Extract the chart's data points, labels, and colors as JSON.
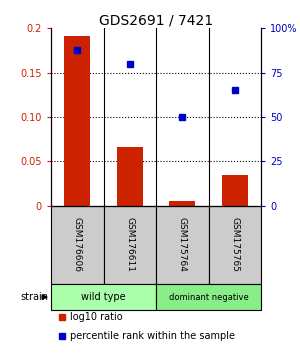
{
  "title": "GDS2691 / 7421",
  "samples": [
    "GSM176606",
    "GSM176611",
    "GSM175764",
    "GSM175765"
  ],
  "bar_values": [
    0.191,
    0.066,
    0.005,
    0.035
  ],
  "percentile_values": [
    88,
    80,
    50,
    65
  ],
  "bar_color": "#cc2200",
  "dot_color": "#0000cc",
  "ylim_left": [
    0,
    0.2
  ],
  "ylim_right": [
    0,
    100
  ],
  "yticks_left": [
    0,
    0.05,
    0.1,
    0.15,
    0.2
  ],
  "yticks_left_labels": [
    "0",
    "0.05",
    "0.10",
    "0.15",
    "0.2"
  ],
  "yticks_right": [
    0,
    25,
    50,
    75,
    100
  ],
  "yticks_right_labels": [
    "0",
    "25",
    "50",
    "75",
    "100%"
  ],
  "strain_groups": [
    {
      "label": "wild type",
      "samples": [
        0,
        1
      ],
      "color": "#aaffaa"
    },
    {
      "label": "dominant negative",
      "samples": [
        2,
        3
      ],
      "color": "#88ee88"
    }
  ],
  "strain_label": "strain",
  "legend_bar_label": "log10 ratio",
  "legend_dot_label": "percentile rank within the sample",
  "background_color": "#ffffff",
  "plot_bg_color": "#ffffff",
  "sample_box_color": "#cccccc",
  "bar_width": 0.5,
  "grid_color": "#000000"
}
